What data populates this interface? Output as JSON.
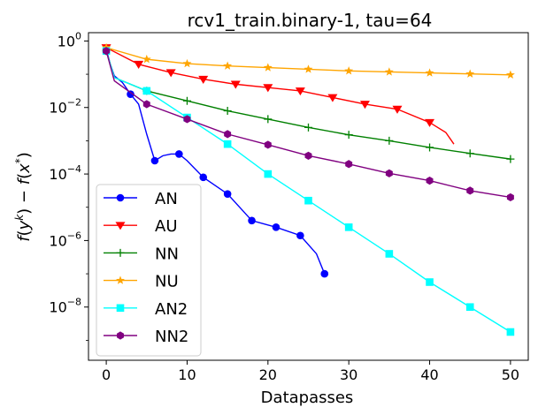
{
  "chart_data": {
    "type": "line",
    "title": "rcv1_train.binary-1, tau=64",
    "xlabel": "Datapasses",
    "ylabel": "f(y^k) − f(x*)",
    "xlim": [
      -2.2,
      52.2
    ],
    "ylim_log10": [
      -9.6,
      0.25
    ],
    "yscale": "log",
    "x_ticks": [
      0,
      10,
      20,
      30,
      40,
      50
    ],
    "y_ticks": [
      {
        "exp": 0,
        "base": "10",
        "sup": "0"
      },
      {
        "exp": -2,
        "base": "10",
        "sup": "−2"
      },
      {
        "exp": -4,
        "base": "10",
        "sup": "−4"
      },
      {
        "exp": -6,
        "base": "10",
        "sup": "−6"
      },
      {
        "exp": -8,
        "base": "10",
        "sup": "−8"
      }
    ],
    "legend_position": "lower-left",
    "series": [
      {
        "name": "AN",
        "color": "#0000ff",
        "marker": "circle",
        "x": [
          0,
          0.5,
          1,
          2,
          3,
          4,
          5,
          6,
          7,
          8,
          9,
          10,
          12,
          15,
          18,
          21,
          24,
          26,
          27
        ],
        "log10y": [
          -0.25,
          -0.7,
          -1.05,
          -1.25,
          -1.6,
          -1.9,
          -2.8,
          -3.6,
          -3.45,
          -3.4,
          -3.4,
          -3.6,
          -4.1,
          -4.6,
          -5.4,
          -5.6,
          -5.85,
          -6.4,
          -7.0
        ],
        "markers_at": [
          0,
          3,
          6,
          9,
          12,
          15,
          18,
          21,
          24,
          27
        ]
      },
      {
        "name": "AU",
        "color": "#ff0000",
        "marker": "triangle-down",
        "x": [
          0,
          4,
          8,
          12,
          16,
          20,
          24,
          28,
          32,
          36,
          40,
          42,
          43
        ],
        "log10y": [
          -0.2,
          -0.7,
          -0.95,
          -1.15,
          -1.3,
          -1.4,
          -1.5,
          -1.7,
          -1.9,
          -2.05,
          -2.45,
          -2.75,
          -3.1
        ],
        "markers_at": [
          0,
          4,
          8,
          12,
          16,
          20,
          24,
          28,
          32,
          36,
          40
        ]
      },
      {
        "name": "NN",
        "color": "#008000",
        "marker": "plus",
        "x": [
          0,
          1,
          5,
          10,
          15,
          20,
          25,
          30,
          35,
          40,
          45,
          50
        ],
        "log10y": [
          -0.3,
          -1.1,
          -1.5,
          -1.8,
          -2.1,
          -2.35,
          -2.6,
          -2.82,
          -3.0,
          -3.2,
          -3.38,
          -3.55
        ],
        "markers_at": [
          0,
          5,
          10,
          15,
          20,
          25,
          30,
          35,
          40,
          45,
          50
        ]
      },
      {
        "name": "NU",
        "color": "#ffa500",
        "marker": "star",
        "x": [
          0,
          5,
          10,
          15,
          20,
          25,
          30,
          35,
          40,
          45,
          50
        ],
        "log10y": [
          -0.2,
          -0.55,
          -0.68,
          -0.75,
          -0.8,
          -0.85,
          -0.9,
          -0.93,
          -0.96,
          -0.99,
          -1.02
        ],
        "markers_at": [
          0,
          5,
          10,
          15,
          20,
          25,
          30,
          35,
          40,
          45,
          50
        ]
      },
      {
        "name": "AN2",
        "color": "#00ffff",
        "marker": "square",
        "x": [
          0,
          1,
          5,
          10,
          15,
          20,
          25,
          30,
          35,
          40,
          45,
          50
        ],
        "log10y": [
          -0.3,
          -1.1,
          -1.5,
          -2.3,
          -3.1,
          -4.0,
          -4.8,
          -5.6,
          -6.4,
          -7.25,
          -8.0,
          -8.75
        ],
        "markers_at": [
          0,
          5,
          10,
          15,
          20,
          25,
          30,
          35,
          40,
          45,
          50
        ]
      },
      {
        "name": "NN2",
        "color": "#800080",
        "marker": "hexagon",
        "x": [
          0,
          1,
          5,
          10,
          15,
          20,
          25,
          30,
          35,
          40,
          45,
          50
        ],
        "log10y": [
          -0.3,
          -1.2,
          -1.9,
          -2.35,
          -2.8,
          -3.12,
          -3.45,
          -3.7,
          -3.98,
          -4.2,
          -4.5,
          -4.7
        ],
        "markers_at": [
          0,
          5,
          10,
          15,
          20,
          25,
          30,
          35,
          40,
          45,
          50
        ]
      }
    ]
  }
}
